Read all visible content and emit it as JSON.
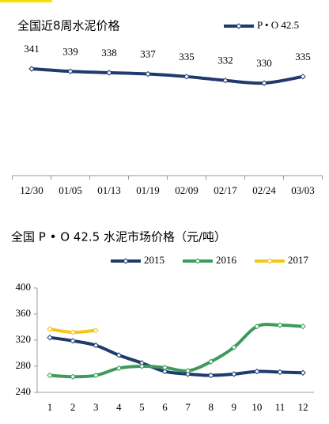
{
  "chart_data": [
    {
      "type": "line",
      "title": "全国近8周水泥价格",
      "categories": [
        "12/30",
        "01/05",
        "01/13",
        "01/19",
        "02/09",
        "02/17",
        "02/24",
        "03/03"
      ],
      "series": [
        {
          "name": "P • O 42.5",
          "color": "#1f3a6e",
          "values": [
            341,
            339,
            338,
            337,
            335,
            332,
            330,
            335
          ]
        }
      ]
    },
    {
      "type": "line",
      "title": "全国 P • O 42.5 水泥市场价格（元/吨）",
      "categories": [
        "1",
        "2",
        "3",
        "4",
        "5",
        "6",
        "7",
        "8",
        "9",
        "10",
        "11",
        "12"
      ],
      "ylim": [
        240,
        400
      ],
      "yticks": [
        240,
        280,
        320,
        360,
        400
      ],
      "grid": false,
      "series": [
        {
          "name": "2015",
          "color": "#1f3a6e",
          "values": [
            324,
            319,
            312,
            297,
            285,
            272,
            268,
            266,
            268,
            272,
            271,
            270
          ]
        },
        {
          "name": "2016",
          "color": "#3d9a5c",
          "values": [
            266,
            264,
            266,
            277,
            280,
            278,
            273,
            287,
            309,
            341,
            343,
            341
          ]
        },
        {
          "name": "2017",
          "color": "#f5c518",
          "values": [
            337,
            332,
            335,
            null,
            null,
            null,
            null,
            null,
            null,
            null,
            null,
            null
          ]
        }
      ]
    }
  ]
}
